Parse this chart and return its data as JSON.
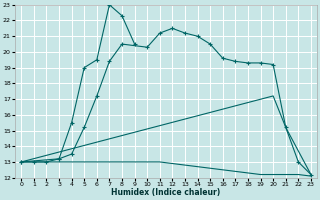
{
  "title": "",
  "xlabel": "Humidex (Indice chaleur)",
  "xlim": [
    -0.5,
    23.5
  ],
  "ylim": [
    12,
    23
  ],
  "xticks": [
    0,
    1,
    2,
    3,
    4,
    5,
    6,
    7,
    8,
    9,
    10,
    11,
    12,
    13,
    14,
    15,
    16,
    17,
    18,
    19,
    20,
    21,
    22,
    23
  ],
  "yticks": [
    12,
    13,
    14,
    15,
    16,
    17,
    18,
    19,
    20,
    21,
    22,
    23
  ],
  "bg_color": "#c8e6e6",
  "grid_color": "#ffffff",
  "line_color": "#006666",
  "line1": {
    "x": [
      0,
      1,
      2,
      3,
      4,
      5,
      6,
      7,
      8,
      9,
      10,
      11,
      12,
      13,
      14,
      15,
      16,
      17,
      18,
      19,
      20,
      21,
      22,
      23
    ],
    "y": [
      13,
      13,
      13,
      13,
      13,
      13,
      13,
      13,
      13,
      13,
      13,
      13.0,
      12.9,
      12.8,
      12.7,
      12.6,
      12.5,
      12.4,
      12.3,
      12.2,
      12.2,
      12.2,
      12.2,
      12.1
    ]
  },
  "line2": {
    "x": [
      0,
      20,
      21,
      23
    ],
    "y": [
      13,
      17.2,
      15.2,
      12.2
    ]
  },
  "line3": {
    "x": [
      0,
      1,
      2,
      3,
      4,
      5,
      6,
      7,
      8,
      10,
      11,
      12,
      13,
      14,
      15,
      16,
      17,
      18,
      19,
      20,
      21,
      22,
      23
    ],
    "y": [
      13,
      13,
      13,
      13.2,
      13.5,
      15.2,
      17.2,
      19.4,
      20.5,
      20.3,
      21.2,
      21.5,
      21.2,
      21.0,
      20.5,
      19.6,
      19.4,
      19.3,
      19.3,
      19.2,
      15.2,
      13.0,
      12.2
    ]
  },
  "line4": {
    "comment": "spike line: 0,13 -> 3,13.2 -> 4,15.5 -> 5,19 -> 6,19.5 -> 7,23 -> 8,22.3 -> 9,20.5",
    "x": [
      0,
      3,
      4,
      5,
      6,
      7,
      8,
      9
    ],
    "y": [
      13,
      13.2,
      15.5,
      19.0,
      19.5,
      23.0,
      22.3,
      20.5
    ]
  }
}
